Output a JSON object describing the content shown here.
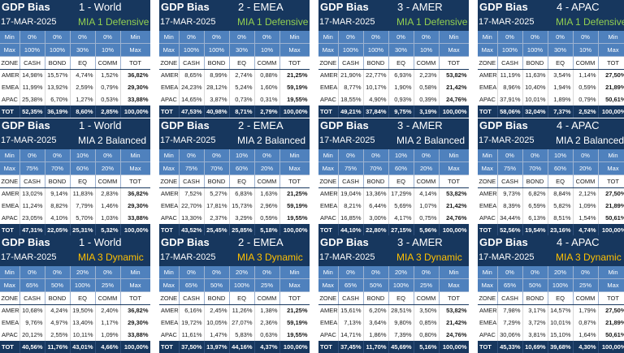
{
  "panels": [
    {
      "title": "GDP Bias",
      "region": "1 - World",
      "date": "17-MAR-2025",
      "mia": "MIA 1 Defensive",
      "mia_color": "#92d050",
      "min_row": [
        "Min",
        "0%",
        "0%",
        "0%",
        "0%",
        "Min"
      ],
      "max_row": [
        "Max",
        "100%",
        "100%",
        "30%",
        "10%",
        "Max"
      ],
      "cols": [
        "ZONE",
        "CASH",
        "BOND",
        "EQ",
        "COMM",
        "TOT"
      ],
      "rows": [
        [
          "AMER",
          "14,98%",
          "15,57%",
          "4,74%",
          "1,52%",
          "36,82%"
        ],
        [
          "EMEA",
          "11,99%",
          "13,92%",
          "2,59%",
          "0,79%",
          "29,30%"
        ],
        [
          "APAC",
          "25,38%",
          "6,70%",
          "1,27%",
          "0,53%",
          "33,88%"
        ]
      ],
      "total": [
        "TOT",
        "52,35%",
        "36,19%",
        "8,60%",
        "2,85%",
        "100,00%"
      ]
    },
    {
      "title": "GDP Bias",
      "region": "2 - EMEA",
      "date": "17-MAR-2025",
      "mia": "MIA 1 Defensive",
      "mia_color": "#92d050",
      "min_row": [
        "Min",
        "0%",
        "0%",
        "0%",
        "0%",
        "Min"
      ],
      "max_row": [
        "Max",
        "100%",
        "100%",
        "30%",
        "10%",
        "Max"
      ],
      "cols": [
        "ZONE",
        "CASH",
        "BOND",
        "EQ",
        "COMM",
        "TOT"
      ],
      "rows": [
        [
          "AMER",
          "8,65%",
          "8,99%",
          "2,74%",
          "0,88%",
          "21,25%"
        ],
        [
          "EMEA",
          "24,23%",
          "28,12%",
          "5,24%",
          "1,60%",
          "59,19%"
        ],
        [
          "APAC",
          "14,65%",
          "3,87%",
          "0,73%",
          "0,31%",
          "19,55%"
        ]
      ],
      "total": [
        "TOT",
        "47,53%",
        "40,98%",
        "8,71%",
        "2,79%",
        "100,00%"
      ]
    },
    {
      "title": "GDP Bias",
      "region": "3 - AMER",
      "date": "17-MAR-2025",
      "mia": "MIA 1 Defensive",
      "mia_color": "#92d050",
      "min_row": [
        "Min",
        "0%",
        "0%",
        "0%",
        "0%",
        "Min"
      ],
      "max_row": [
        "Max",
        "100%",
        "100%",
        "30%",
        "10%",
        "Max"
      ],
      "cols": [
        "ZONE",
        "CASH",
        "BOND",
        "EQ",
        "COMM",
        "TOT"
      ],
      "rows": [
        [
          "AMER",
          "21,90%",
          "22,77%",
          "6,93%",
          "2,23%",
          "53,82%"
        ],
        [
          "EMEA",
          "8,77%",
          "10,17%",
          "1,90%",
          "0,58%",
          "21,42%"
        ],
        [
          "APAC",
          "18,55%",
          "4,90%",
          "0,93%",
          "0,39%",
          "24,76%"
        ]
      ],
      "total": [
        "TOT",
        "49,21%",
        "37,84%",
        "9,75%",
        "3,19%",
        "100,00%"
      ]
    },
    {
      "title": "GDP Bias",
      "region": "4 - APAC",
      "date": "17-MAR-2025",
      "mia": "MIA 1 Defensive",
      "mia_color": "#92d050",
      "min_row": [
        "Min",
        "0%",
        "0%",
        "0%",
        "0%",
        "Min"
      ],
      "max_row": [
        "Max",
        "100%",
        "100%",
        "30%",
        "10%",
        "Max"
      ],
      "cols": [
        "ZONE",
        "CASH",
        "BOND",
        "EQ",
        "COMM",
        "TOT"
      ],
      "rows": [
        [
          "AMER",
          "11,19%",
          "11,63%",
          "3,54%",
          "1,14%",
          "27,50%"
        ],
        [
          "EMEA",
          "8,96%",
          "10,40%",
          "1,94%",
          "0,59%",
          "21,89%"
        ],
        [
          "APAC",
          "37,91%",
          "10,01%",
          "1,89%",
          "0,79%",
          "50,61%"
        ]
      ],
      "total": [
        "TOT",
        "58,06%",
        "32,04%",
        "7,37%",
        "2,52%",
        "100,00%"
      ]
    },
    {
      "title": "GDP Bias",
      "region": "1 - World",
      "date": "17-MAR-2025",
      "mia": "MIA 2 Balanced",
      "mia_color": "#ffffff",
      "min_row": [
        "Min",
        "0%",
        "0%",
        "10%",
        "0%",
        "Min"
      ],
      "max_row": [
        "Max",
        "75%",
        "70%",
        "60%",
        "20%",
        "Max"
      ],
      "cols": [
        "ZONE",
        "CASH",
        "BOND",
        "EQ",
        "COMM",
        "TOT"
      ],
      "rows": [
        [
          "AMER",
          "13,02%",
          "9,14%",
          "11,83%",
          "2,83%",
          "36,82%"
        ],
        [
          "EMEA",
          "11,24%",
          "8,82%",
          "7,79%",
          "1,46%",
          "29,30%"
        ],
        [
          "APAC",
          "23,05%",
          "4,10%",
          "5,70%",
          "1,03%",
          "33,88%"
        ]
      ],
      "total": [
        "TOT",
        "47,31%",
        "22,05%",
        "25,31%",
        "5,32%",
        "100,00%"
      ]
    },
    {
      "title": "GDP Bias",
      "region": "2 - EMEA",
      "date": "17-MAR-2025",
      "mia": "MIA 2 Balanced",
      "mia_color": "#ffffff",
      "min_row": [
        "Min",
        "0%",
        "0%",
        "10%",
        "0%",
        "Min"
      ],
      "max_row": [
        "Max",
        "75%",
        "70%",
        "60%",
        "20%",
        "Max"
      ],
      "cols": [
        "ZONE",
        "CASH",
        "BOND",
        "EQ",
        "COMM",
        "TOT"
      ],
      "rows": [
        [
          "AMER",
          "7,52%",
          "5,27%",
          "6,83%",
          "1,63%",
          "21,25%"
        ],
        [
          "EMEA",
          "22,70%",
          "17,81%",
          "15,73%",
          "2,96%",
          "59,19%"
        ],
        [
          "APAC",
          "13,30%",
          "2,37%",
          "3,29%",
          "0,59%",
          "19,55%"
        ]
      ],
      "total": [
        "TOT",
        "43,52%",
        "25,45%",
        "25,85%",
        "5,18%",
        "100,00%"
      ]
    },
    {
      "title": "GDP Bias",
      "region": "3 - AMER",
      "date": "17-MAR-2025",
      "mia": "MIA 2 Balanced",
      "mia_color": "#ffffff",
      "min_row": [
        "Min",
        "0%",
        "0%",
        "10%",
        "0%",
        "Min"
      ],
      "max_row": [
        "Max",
        "75%",
        "70%",
        "60%",
        "20%",
        "Max"
      ],
      "cols": [
        "ZONE",
        "CASH",
        "BOND",
        "EQ",
        "COMM",
        "TOT"
      ],
      "rows": [
        [
          "AMER",
          "19,04%",
          "13,36%",
          "17,29%",
          "4,14%",
          "53,82%"
        ],
        [
          "EMEA",
          "8,21%",
          "6,44%",
          "5,69%",
          "1,07%",
          "21,42%"
        ],
        [
          "APAC",
          "16,85%",
          "3,00%",
          "4,17%",
          "0,75%",
          "24,76%"
        ]
      ],
      "total": [
        "TOT",
        "44,10%",
        "22,80%",
        "27,15%",
        "5,96%",
        "100,00%"
      ]
    },
    {
      "title": "GDP Bias",
      "region": "4 - APAC",
      "date": "17-MAR-2025",
      "mia": "MIA 2 Balanced",
      "mia_color": "#ffffff",
      "min_row": [
        "Min",
        "0%",
        "0%",
        "10%",
        "0%",
        "Min"
      ],
      "max_row": [
        "Max",
        "75%",
        "70%",
        "60%",
        "20%",
        "Max"
      ],
      "cols": [
        "ZONE",
        "CASH",
        "BOND",
        "EQ",
        "COMM",
        "TOT"
      ],
      "rows": [
        [
          "AMER",
          "9,73%",
          "6,82%",
          "8,84%",
          "2,12%",
          "27,50%"
        ],
        [
          "EMEA",
          "8,39%",
          "6,59%",
          "5,82%",
          "1,09%",
          "21,89%"
        ],
        [
          "APAC",
          "34,44%",
          "6,13%",
          "8,51%",
          "1,54%",
          "50,61%"
        ]
      ],
      "total": [
        "TOT",
        "52,56%",
        "19,54%",
        "23,16%",
        "4,74%",
        "100,00%"
      ]
    },
    {
      "title": "GDP Bias",
      "region": "1 - World",
      "date": "17-MAR-2025",
      "mia": "MIA 3 Dynamic",
      "mia_color": "#ffc000",
      "min_row": [
        "Min",
        "0%",
        "0%",
        "20%",
        "0%",
        "Min"
      ],
      "max_row": [
        "Max",
        "65%",
        "50%",
        "100%",
        "25%",
        "Max"
      ],
      "cols": [
        "ZONE",
        "CASH",
        "BOND",
        "EQ",
        "COMM",
        "TOT"
      ],
      "rows": [
        [
          "AMER",
          "10,68%",
          "4,24%",
          "19,50%",
          "2,40%",
          "36,82%"
        ],
        [
          "EMEA",
          "9,76%",
          "4,97%",
          "13,40%",
          "1,17%",
          "29,30%"
        ],
        [
          "APAC",
          "20,12%",
          "2,55%",
          "10,11%",
          "1,09%",
          "33,88%"
        ]
      ],
      "total": [
        "TOT",
        "40,56%",
        "11,76%",
        "43,01%",
        "4,66%",
        "100,00%"
      ]
    },
    {
      "title": "GDP Bias",
      "region": "2 - EMEA",
      "date": "17-MAR-2025",
      "mia": "MIA 3 Dynamic",
      "mia_color": "#ffc000",
      "min_row": [
        "Min",
        "0%",
        "0%",
        "20%",
        "0%",
        "Min"
      ],
      "max_row": [
        "Max",
        "65%",
        "50%",
        "100%",
        "25%",
        "Max"
      ],
      "cols": [
        "ZONE",
        "CASH",
        "BOND",
        "EQ",
        "COMM",
        "TOT"
      ],
      "rows": [
        [
          "AMER",
          "6,16%",
          "2,45%",
          "11,26%",
          "1,38%",
          "21,25%"
        ],
        [
          "EMEA",
          "19,72%",
          "10,05%",
          "27,07%",
          "2,36%",
          "59,19%"
        ],
        [
          "APAC",
          "11,61%",
          "1,47%",
          "5,83%",
          "0,63%",
          "19,55%"
        ]
      ],
      "total": [
        "TOT",
        "37,50%",
        "13,97%",
        "44,16%",
        "4,37%",
        "100,00%"
      ]
    },
    {
      "title": "GDP Bias",
      "region": "3 - AMER",
      "date": "17-MAR-2025",
      "mia": "MIA 3 Dynamic",
      "mia_color": "#ffc000",
      "min_row": [
        "Min",
        "0%",
        "0%",
        "20%",
        "0%",
        "Min"
      ],
      "max_row": [
        "Max",
        "65%",
        "50%",
        "100%",
        "25%",
        "Max"
      ],
      "cols": [
        "ZONE",
        "CASH",
        "BOND",
        "EQ",
        "COMM",
        "TOT"
      ],
      "rows": [
        [
          "AMER",
          "15,61%",
          "6,20%",
          "28,51%",
          "3,50%",
          "53,82%"
        ],
        [
          "EMEA",
          "7,13%",
          "3,64%",
          "9,80%",
          "0,85%",
          "21,42%"
        ],
        [
          "APAC",
          "14,71%",
          "1,86%",
          "7,39%",
          "0,80%",
          "24,76%"
        ]
      ],
      "total": [
        "TOT",
        "37,45%",
        "11,70%",
        "45,69%",
        "5,16%",
        "100,00%"
      ]
    },
    {
      "title": "GDP Bias",
      "region": "4 - APAC",
      "date": "17-MAR-2025",
      "mia": "MIA 3 Dynamic",
      "mia_color": "#ffc000",
      "min_row": [
        "Min",
        "0%",
        "0%",
        "20%",
        "0%",
        "Min"
      ],
      "max_row": [
        "Max",
        "65%",
        "50%",
        "100%",
        "25%",
        "Max"
      ],
      "cols": [
        "ZONE",
        "CASH",
        "BOND",
        "EQ",
        "COMM",
        "TOT"
      ],
      "rows": [
        [
          "AMER",
          "7,98%",
          "3,17%",
          "14,57%",
          "1,79%",
          "27,50%"
        ],
        [
          "EMEA",
          "7,29%",
          "3,72%",
          "10,01%",
          "0,87%",
          "21,89%"
        ],
        [
          "APAC",
          "30,06%",
          "3,81%",
          "15,10%",
          "1,64%",
          "50,61%"
        ]
      ],
      "total": [
        "TOT",
        "45,33%",
        "10,69%",
        "39,68%",
        "4,30%",
        "100,00%"
      ]
    }
  ]
}
